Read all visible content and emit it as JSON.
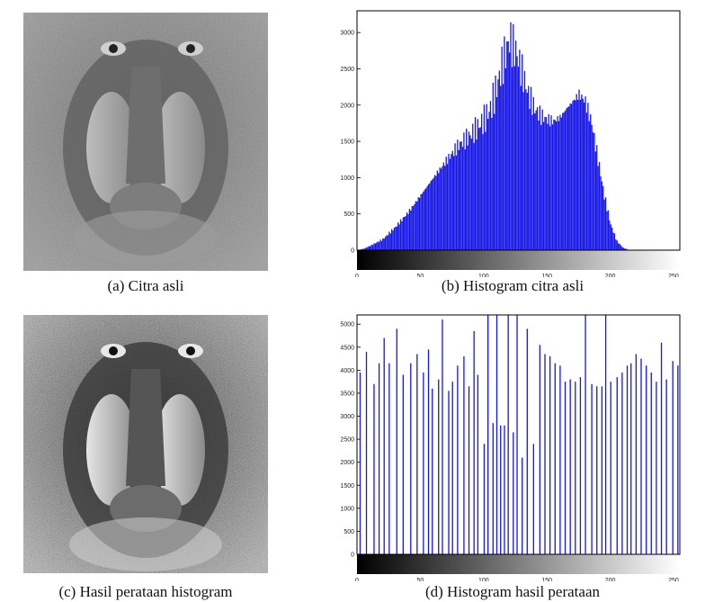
{
  "panels": {
    "a": {
      "caption": "(a) Citra asli"
    },
    "b": {
      "caption": "(b) Histogram citra asli"
    },
    "c": {
      "caption": "(c) Hasil perataan histogram"
    },
    "d": {
      "caption": "(d) Histogram hasil perataan"
    }
  },
  "colors": {
    "bar": "#1515e6",
    "frame": "#000000"
  },
  "chart_data": [
    {
      "type": "bar",
      "xlim": [
        0,
        255
      ],
      "ylim": [
        0,
        3300
      ],
      "x_ticks": [
        0,
        50,
        100,
        150,
        200,
        250
      ],
      "y_ticks": [
        0,
        500,
        1000,
        1500,
        2000,
        2500,
        3000
      ],
      "colorbar": "grayscale",
      "profile": [
        [
          0,
          0
        ],
        [
          5,
          20
        ],
        [
          10,
          60
        ],
        [
          20,
          150
        ],
        [
          30,
          320
        ],
        [
          40,
          520
        ],
        [
          50,
          760
        ],
        [
          60,
          1000
        ],
        [
          70,
          1230
        ],
        [
          80,
          1450
        ],
        [
          90,
          1600
        ],
        [
          100,
          1800
        ],
        [
          105,
          1950
        ],
        [
          110,
          2250
        ],
        [
          115,
          2600
        ],
        [
          120,
          2900
        ],
        [
          125,
          2750
        ],
        [
          130,
          2450
        ],
        [
          135,
          2150
        ],
        [
          140,
          1950
        ],
        [
          145,
          1850
        ],
        [
          150,
          1800
        ],
        [
          155,
          1780
        ],
        [
          160,
          1830
        ],
        [
          165,
          1950
        ],
        [
          170,
          2050
        ],
        [
          175,
          2150
        ],
        [
          180,
          2050
        ],
        [
          185,
          1750
        ],
        [
          190,
          1250
        ],
        [
          195,
          750
        ],
        [
          200,
          350
        ],
        [
          205,
          120
        ],
        [
          210,
          30
        ],
        [
          215,
          0
        ],
        [
          255,
          0
        ]
      ]
    },
    {
      "type": "bar",
      "xlim": [
        0,
        255
      ],
      "ylim": [
        0,
        5200
      ],
      "x_ticks": [
        0,
        50,
        100,
        150,
        200,
        250
      ],
      "y_ticks": [
        0,
        500,
        1000,
        1500,
        2000,
        2500,
        3000,
        3500,
        4000,
        4500,
        5000
      ],
      "colorbar": "grayscale",
      "bars": [
        [
          2,
          3950
        ],
        [
          7,
          4400
        ],
        [
          13,
          3700
        ],
        [
          17,
          4150
        ],
        [
          21,
          4700
        ],
        [
          25,
          4150
        ],
        [
          31,
          4900
        ],
        [
          36,
          3900
        ],
        [
          42,
          4150
        ],
        [
          47,
          4350
        ],
        [
          52,
          3950
        ],
        [
          56,
          4450
        ],
        [
          59,
          3600
        ],
        [
          64,
          3800
        ],
        [
          67,
          5100
        ],
        [
          72,
          3550
        ],
        [
          75,
          3750
        ],
        [
          79,
          4100
        ],
        [
          84,
          4300
        ],
        [
          88,
          3650
        ],
        [
          92,
          4850
        ],
        [
          95,
          3900
        ],
        [
          100,
          2400
        ],
        [
          103,
          5200
        ],
        [
          107,
          2850
        ],
        [
          110,
          5200
        ],
        [
          113,
          2800
        ],
        [
          116,
          2800
        ],
        [
          119,
          5200
        ],
        [
          123,
          2650
        ],
        [
          126,
          5200
        ],
        [
          130,
          2100
        ],
        [
          134,
          4900
        ],
        [
          139,
          2400
        ],
        [
          144,
          4550
        ],
        [
          148,
          4350
        ],
        [
          152,
          4300
        ],
        [
          156,
          4150
        ],
        [
          160,
          4100
        ],
        [
          164,
          3750
        ],
        [
          168,
          3800
        ],
        [
          172,
          3750
        ],
        [
          176,
          3850
        ],
        [
          180,
          5200
        ],
        [
          185,
          3700
        ],
        [
          189,
          3650
        ],
        [
          193,
          3650
        ],
        [
          196,
          5200
        ],
        [
          200,
          3750
        ],
        [
          205,
          3850
        ],
        [
          209,
          3950
        ],
        [
          213,
          4100
        ],
        [
          216,
          4150
        ],
        [
          220,
          4350
        ],
        [
          224,
          4250
        ],
        [
          228,
          4100
        ],
        [
          232,
          3950
        ],
        [
          236,
          3750
        ],
        [
          240,
          4600
        ],
        [
          244,
          3800
        ],
        [
          249,
          4200
        ],
        [
          253,
          4100
        ]
      ]
    }
  ]
}
